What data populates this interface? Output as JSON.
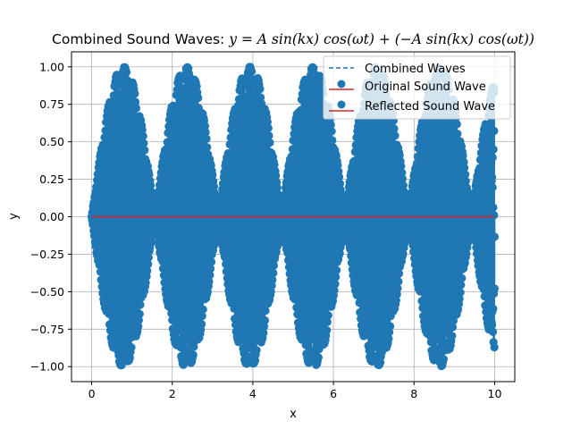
{
  "chart_data": {
    "type": "scatter",
    "title": {
      "prefix": "Combined Sound Waves: ",
      "equation": "y = A sin(kx) cos(ωt) + (−A sin(kx) cos(ωt))"
    },
    "xlabel": "x",
    "ylabel": "y",
    "xlim": [
      -0.5,
      10.5
    ],
    "ylim": [
      -1.1,
      1.1
    ],
    "x_ticks": [
      0,
      2,
      4,
      6,
      8,
      10
    ],
    "x_tick_labels": [
      "0",
      "2",
      "4",
      "6",
      "8",
      "10"
    ],
    "y_ticks": [
      -1.0,
      -0.75,
      -0.5,
      -0.25,
      0.0,
      0.25,
      0.5,
      0.75,
      1.0
    ],
    "y_tick_labels": [
      "−1.00",
      "−0.75",
      "−0.50",
      "−0.25",
      "0.00",
      "0.25",
      "0.50",
      "0.75",
      "1.00"
    ],
    "grid": true,
    "legend_position": "upper-right",
    "series": [
      {
        "name": "Combined Waves",
        "kind": "line",
        "style": "dashed",
        "color": "#1f77b4",
        "points": [
          [
            0,
            0
          ],
          [
            10,
            0
          ]
        ]
      },
      {
        "name": "Original Sound Wave",
        "kind": "stem",
        "color": "#1f77b4",
        "baseline_color": "#d62728",
        "amplitude": 1.0,
        "k": 2.0,
        "x_range": [
          0,
          10
        ],
        "envelope": "|A·sin(kx)|"
      },
      {
        "name": "Reflected Sound Wave",
        "kind": "stem",
        "color": "#1f77b4",
        "baseline_color": "#d62728",
        "amplitude": -1.0,
        "k": 2.0,
        "x_range": [
          0,
          10
        ],
        "envelope": "|A·sin(kx)|"
      }
    ]
  }
}
